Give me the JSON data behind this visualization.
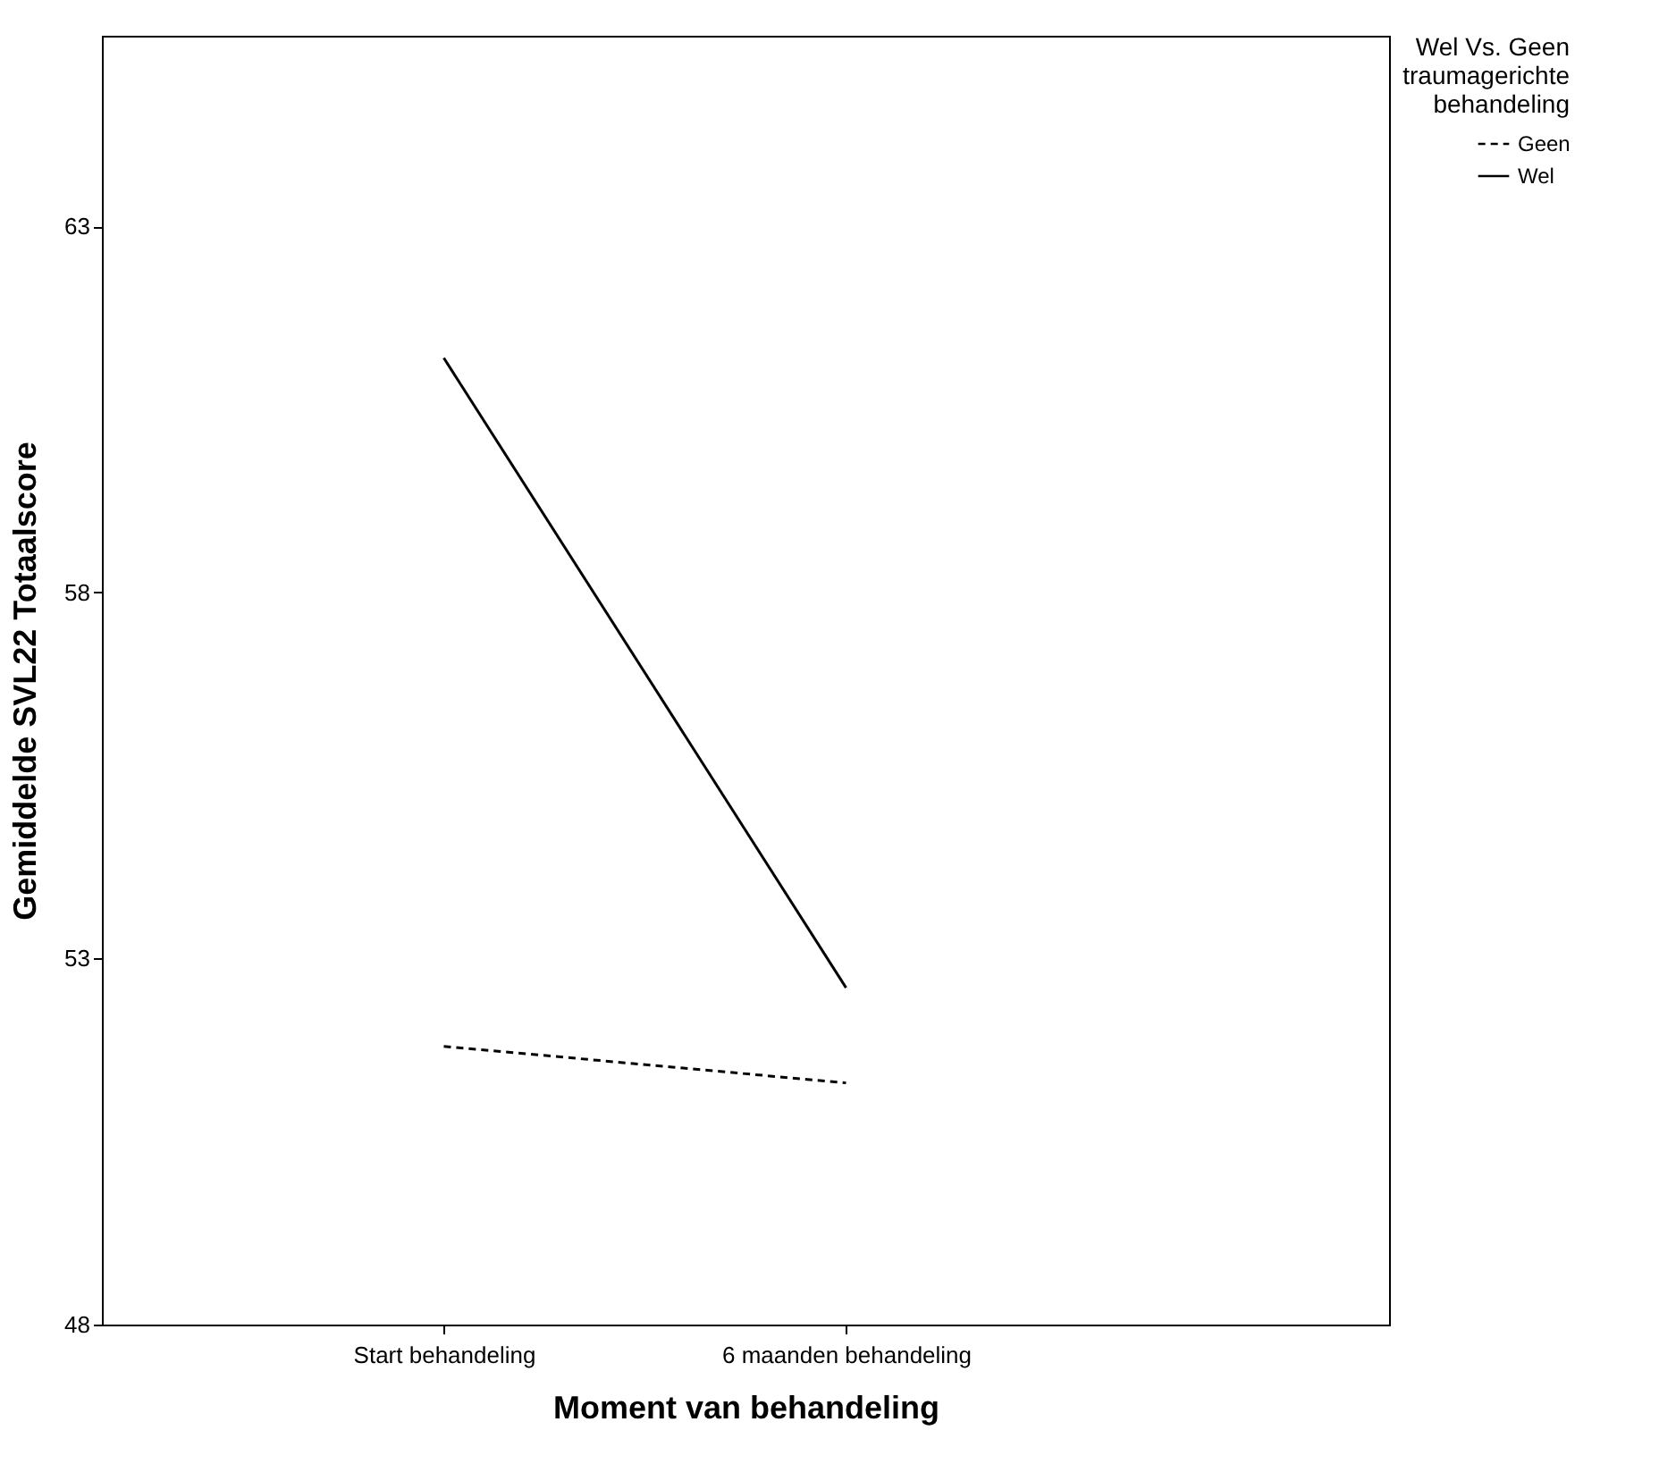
{
  "chart_data": {
    "type": "line",
    "xlabel": "Moment van behandeling",
    "ylabel": "Gemiddelde SVL22 Totaalscore",
    "legend_title": "Wel Vs. Geen traumagerichte behandeling",
    "legend": "top right",
    "categories": [
      "Start behandeling",
      "6 maanden behandeling"
    ],
    "series": [
      {
        "name": "Geen",
        "color": "#000000",
        "line_style": "dashed",
        "values": [
          51.8,
          51.3
        ]
      },
      {
        "name": "Wel",
        "color": "#000000",
        "line_style": "solid",
        "values": [
          61.2,
          52.6
        ]
      }
    ],
    "ylim": [
      48,
      65.6
    ],
    "yticks": [
      48,
      53,
      58,
      63
    ],
    "grid": false,
    "marker": "none"
  }
}
